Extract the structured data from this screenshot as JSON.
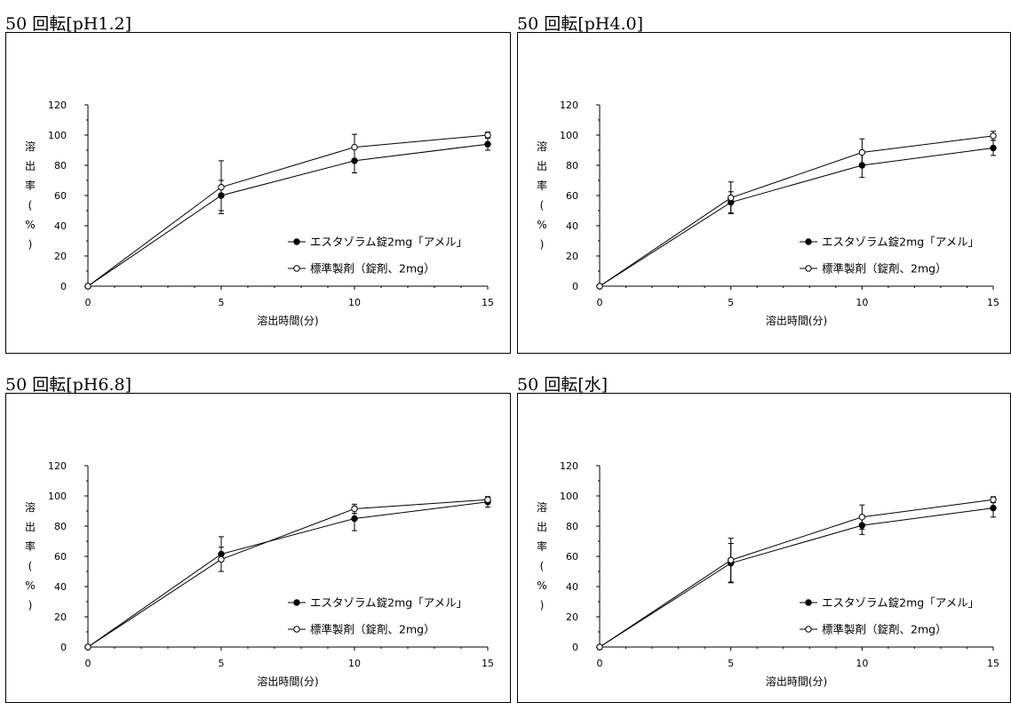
{
  "chart_data": [
    {
      "type": "line",
      "title": "50 回転[pH1.2]",
      "xlabel": "溶出時間(分)",
      "ylabel": "溶出率(%)",
      "x": [
        0,
        5,
        10,
        15
      ],
      "xlim": [
        0,
        15
      ],
      "ylim": [
        0,
        120
      ],
      "xticks": [
        0,
        5,
        10,
        15
      ],
      "yticks": [
        0,
        20,
        40,
        60,
        80,
        100,
        120
      ],
      "grid": false,
      "legend_position": "bottom-right",
      "series": [
        {
          "name": "エスタゾラム錠2mg「アメル」",
          "marker": "filled-circle",
          "values": [
            0,
            60,
            83,
            94
          ],
          "errors": [
            0,
            10,
            8,
            4
          ]
        },
        {
          "name": "標準製剤（錠剤、2mg）",
          "marker": "open-circle",
          "values": [
            0,
            65.5,
            92,
            100
          ],
          "errors": [
            0,
            17.5,
            8.5,
            2
          ]
        }
      ]
    },
    {
      "type": "line",
      "title": "50 回転[pH4.0]",
      "xlabel": "溶出時間(分)",
      "ylabel": "溶出率(%)",
      "x": [
        0,
        5,
        10,
        15
      ],
      "xlim": [
        0,
        15
      ],
      "ylim": [
        0,
        120
      ],
      "xticks": [
        0,
        5,
        10,
        15
      ],
      "yticks": [
        0,
        20,
        40,
        60,
        80,
        100,
        120
      ],
      "grid": false,
      "legend_position": "bottom-right",
      "series": [
        {
          "name": "エスタゾラム錠2mg「アメル」",
          "marker": "filled-circle",
          "values": [
            0,
            55.5,
            80,
            91.5
          ],
          "errors": [
            0,
            7,
            8,
            5
          ]
        },
        {
          "name": "標準製剤（錠剤、2mg）",
          "marker": "open-circle",
          "values": [
            0,
            58.5,
            88.5,
            99.5
          ],
          "errors": [
            0,
            10.5,
            9,
            3
          ]
        }
      ]
    },
    {
      "type": "line",
      "title": "50 回転[pH6.8]",
      "xlabel": "溶出時間(分)",
      "ylabel": "溶出率(%)",
      "x": [
        0,
        5,
        10,
        15
      ],
      "xlim": [
        0,
        15
      ],
      "ylim": [
        0,
        120
      ],
      "xticks": [
        0,
        5,
        10,
        15
      ],
      "yticks": [
        0,
        20,
        40,
        60,
        80,
        100,
        120
      ],
      "grid": false,
      "legend_position": "bottom-right",
      "series": [
        {
          "name": "エスタゾラム錠2mg「アメル」",
          "marker": "filled-circle",
          "values": [
            0,
            61.5,
            85,
            96
          ],
          "errors": [
            0,
            11.5,
            8,
            3.5
          ]
        },
        {
          "name": "標準製剤（錠剤、2mg）",
          "marker": "open-circle",
          "values": [
            0,
            58,
            91.5,
            97.5
          ],
          "errors": [
            0,
            8,
            3,
            2
          ]
        }
      ]
    },
    {
      "type": "line",
      "title": "50 回転[水]",
      "xlabel": "溶出時間(分)",
      "ylabel": "溶出率(%)",
      "x": [
        0,
        5,
        10,
        15
      ],
      "xlim": [
        0,
        15
      ],
      "ylim": [
        0,
        120
      ],
      "xticks": [
        0,
        5,
        10,
        15
      ],
      "yticks": [
        0,
        20,
        40,
        60,
        80,
        100,
        120
      ],
      "grid": false,
      "legend_position": "bottom-right",
      "series": [
        {
          "name": "エスタゾラム錠2mg「アメル」",
          "marker": "filled-circle",
          "values": [
            0,
            55.5,
            80.5,
            92
          ],
          "errors": [
            0,
            13,
            6,
            6
          ]
        },
        {
          "name": "標準製剤（錠剤、2mg）",
          "marker": "open-circle",
          "values": [
            0,
            57.5,
            86,
            97.5
          ],
          "errors": [
            0,
            14.5,
            8,
            2
          ]
        }
      ]
    }
  ]
}
